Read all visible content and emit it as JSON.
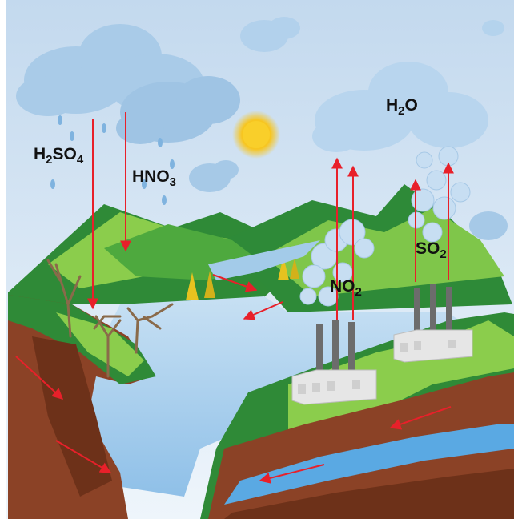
{
  "labels": {
    "h2so4": {
      "base": "H",
      "sub1": "2",
      "mid": "SO",
      "sub2": "4"
    },
    "hno3": {
      "base": "HNO",
      "sub": "3"
    },
    "h2o": {
      "base": "H",
      "sub": "2",
      "tail": "O"
    },
    "no2": {
      "base": "NO",
      "sub": "2"
    },
    "so2": {
      "base": "SO",
      "sub": "2"
    }
  },
  "colors": {
    "arrow": "#e8202a",
    "sky_top": "#c7dcef",
    "sky_bottom": "#eaf3fb",
    "cloud": "#a8cbe9",
    "cloud_shade": "#7fb0db",
    "sun": "#f7c51e",
    "hill_dark": "#2f8a37",
    "hill_light": "#8fcf4d",
    "lake": "#b6d6f0",
    "river": "#5aa9e3",
    "soil": "#8b4226",
    "soil_dark": "#6d3119",
    "factory": "#e4e4e4",
    "chimney": "#6c6c6c"
  }
}
